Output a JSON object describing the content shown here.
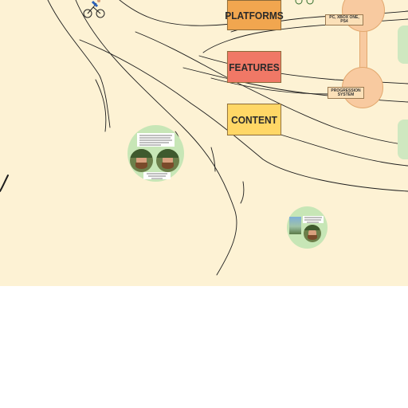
{
  "board": {
    "tags": {
      "platforms": "PLATFORMS",
      "features": "FEATURES",
      "content": "CONTENT"
    },
    "mindmap_labels": {
      "platforms_detail": "PC, XBOX ONE, PS4",
      "progression": "PROGRESSION SYSTEM"
    }
  },
  "icons": [
    "cyclist-doodle-icon",
    "wheels-doodle-icon"
  ],
  "colors": {
    "canvas": "#fdf2d4",
    "platforms": "#f1a64f",
    "features": "#f07866",
    "content": "#ffd766",
    "orb": "#f8caa0",
    "bubble": "#c7e6b6"
  }
}
